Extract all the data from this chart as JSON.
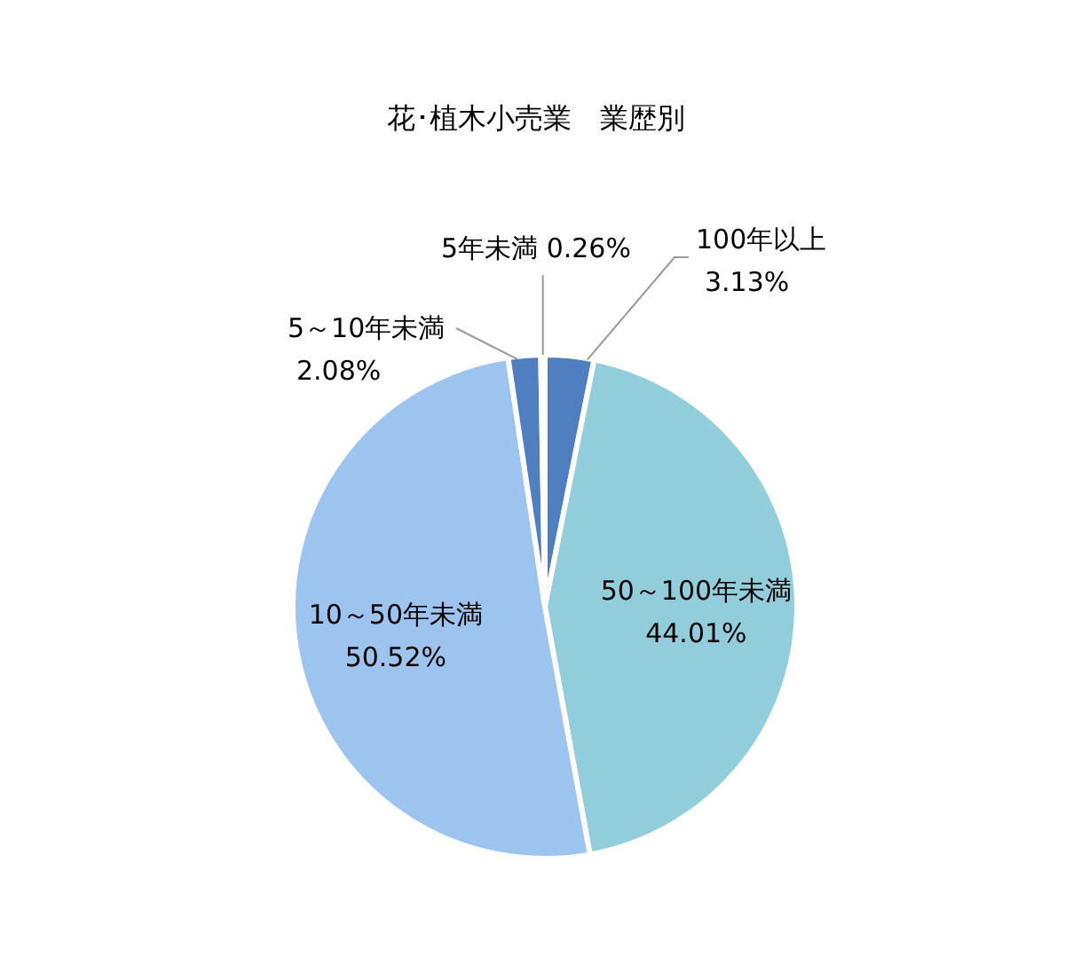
{
  "chart_data": {
    "type": "pie",
    "title": "花･植木小売業　業歴別",
    "categories": [
      "100年以上",
      "50～100年未満",
      "10～50年未満",
      "5～10年未満",
      "5年未満"
    ],
    "values": [
      3.13,
      44.01,
      50.52,
      2.08,
      0.26
    ],
    "colors": [
      "#4f7fc0",
      "#92cddc",
      "#9dc3ef",
      "#4f7fc0",
      "#4f7fc0"
    ],
    "value_labels": [
      "3.13%",
      "44.01%",
      "50.52%",
      "2.08%",
      "0.26%"
    ]
  }
}
